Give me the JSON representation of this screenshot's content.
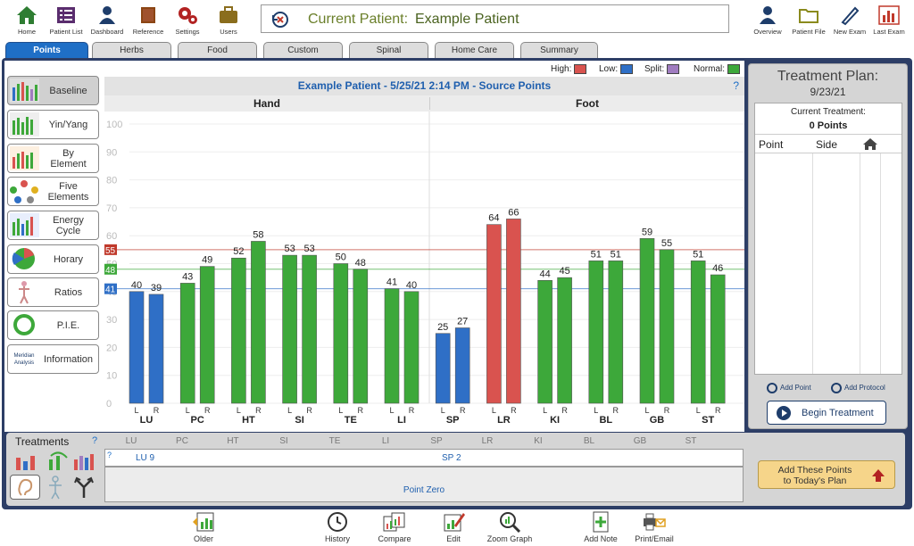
{
  "toolbar": {
    "left": [
      {
        "label": "Home",
        "icon": "home-icon"
      },
      {
        "label": "Patient List",
        "icon": "list-icon"
      },
      {
        "label": "Dashboard",
        "icon": "person-icon"
      },
      {
        "label": "Reference",
        "icon": "book-icon"
      },
      {
        "label": "Settings",
        "icon": "gear-icon"
      },
      {
        "label": "Users",
        "icon": "briefcase-icon"
      }
    ],
    "right": [
      {
        "label": "Overview",
        "icon": "person-icon"
      },
      {
        "label": "Patient File",
        "icon": "folder-icon"
      },
      {
        "label": "New Exam",
        "icon": "pen-icon"
      },
      {
        "label": "Last Exam",
        "icon": "bar-chart-icon"
      }
    ],
    "patient_label": "Current Patient:",
    "patient_name": "Example Patient"
  },
  "tabs": [
    "Points",
    "Herbs",
    "Food",
    "Custom",
    "Spinal",
    "Home Care",
    "Summary"
  ],
  "active_tab": "Points",
  "menu": [
    "Baseline",
    "Yin/Yang",
    "By\nElement",
    "Five\nElements",
    "Energy\nCycle",
    "Horary",
    "Ratios",
    "P.I.E.",
    "Information"
  ],
  "legend": {
    "high": {
      "label": "High:",
      "color": "#d9534f"
    },
    "low": {
      "label": "Low:",
      "color": "#2f6fc6"
    },
    "split": {
      "label": "Split:",
      "color": "#a07cc0"
    },
    "normal": {
      "label": "Normal:",
      "color": "#3da83a"
    }
  },
  "chart_data": {
    "type": "bar",
    "title": "Example Patient - 5/25/21 2:14 PM - Source Points",
    "help": "?",
    "groups": [
      {
        "label": "Hand",
        "meridians": [
          "LU",
          "PC",
          "HT",
          "SI",
          "TE",
          "LI"
        ]
      },
      {
        "label": "Foot",
        "meridians": [
          "SP",
          "LR",
          "KI",
          "BL",
          "GB",
          "ST"
        ]
      }
    ],
    "categories": [
      "LU",
      "PC",
      "HT",
      "SI",
      "TE",
      "LI",
      "SP",
      "LR",
      "KI",
      "BL",
      "GB",
      "ST"
    ],
    "sides": [
      "L",
      "R"
    ],
    "series": [
      {
        "name": "L",
        "values": [
          40,
          43,
          52,
          53,
          50,
          41,
          25,
          64,
          44,
          51,
          59,
          51
        ]
      },
      {
        "name": "R",
        "values": [
          39,
          49,
          58,
          53,
          48,
          40,
          27,
          66,
          45,
          51,
          55,
          46
        ]
      }
    ],
    "status": [
      [
        "low",
        "low"
      ],
      [
        "normal",
        "normal"
      ],
      [
        "normal",
        "normal"
      ],
      [
        "normal",
        "normal"
      ],
      [
        "normal",
        "normal"
      ],
      [
        "normal",
        "normal"
      ],
      [
        "low",
        "low"
      ],
      [
        "high",
        "high"
      ],
      [
        "normal",
        "normal"
      ],
      [
        "normal",
        "normal"
      ],
      [
        "normal",
        "normal"
      ],
      [
        "normal",
        "normal"
      ]
    ],
    "ylim": [
      0,
      100
    ],
    "yticks": [
      0,
      10,
      20,
      30,
      40,
      50,
      60,
      70,
      80,
      90,
      100
    ],
    "reference_lines": [
      {
        "value": 55,
        "color": "#c0392b"
      },
      {
        "value": 48,
        "color": "#3da83a"
      },
      {
        "value": 41,
        "color": "#2f6fc6"
      }
    ]
  },
  "treatment_plan": {
    "title": "Treatment Plan:",
    "date": "9/23/21",
    "current_label": "Current Treatment:",
    "points_count": "0 Points",
    "col_point": "Point",
    "col_side": "Side",
    "add_point": "Add Point",
    "add_protocol": "Add Protocol",
    "begin": "Begin Treatment"
  },
  "treatments": {
    "title": "Treatments",
    "help": "?",
    "columns": [
      "LU",
      "PC",
      "HT",
      "SI",
      "TE",
      "LI",
      "SP",
      "LR",
      "KI",
      "BL",
      "GB",
      "ST"
    ],
    "row_help": "?",
    "row1": [
      {
        "col": "LU",
        "text": "LU 9"
      },
      {
        "col": "SP",
        "text": "SP 2"
      }
    ],
    "row2": "Point Zero",
    "add_button": "Add These Points\nto Today's Plan"
  },
  "footer": [
    {
      "label": "Older",
      "icon": "arrow-chart-icon"
    },
    {
      "label": "History",
      "icon": "clock-icon"
    },
    {
      "label": "Compare",
      "icon": "compare-icon"
    },
    {
      "label": "Edit",
      "icon": "edit-icon"
    },
    {
      "label": "Zoom Graph",
      "icon": "zoom-icon"
    },
    {
      "label": "Add Note",
      "icon": "note-icon"
    },
    {
      "label": "Print/Email",
      "icon": "print-icon"
    }
  ],
  "colors": {
    "high": "#d9534f",
    "low": "#2f6fc6",
    "normal": "#3da83a",
    "accent": "#1f6fc6"
  }
}
